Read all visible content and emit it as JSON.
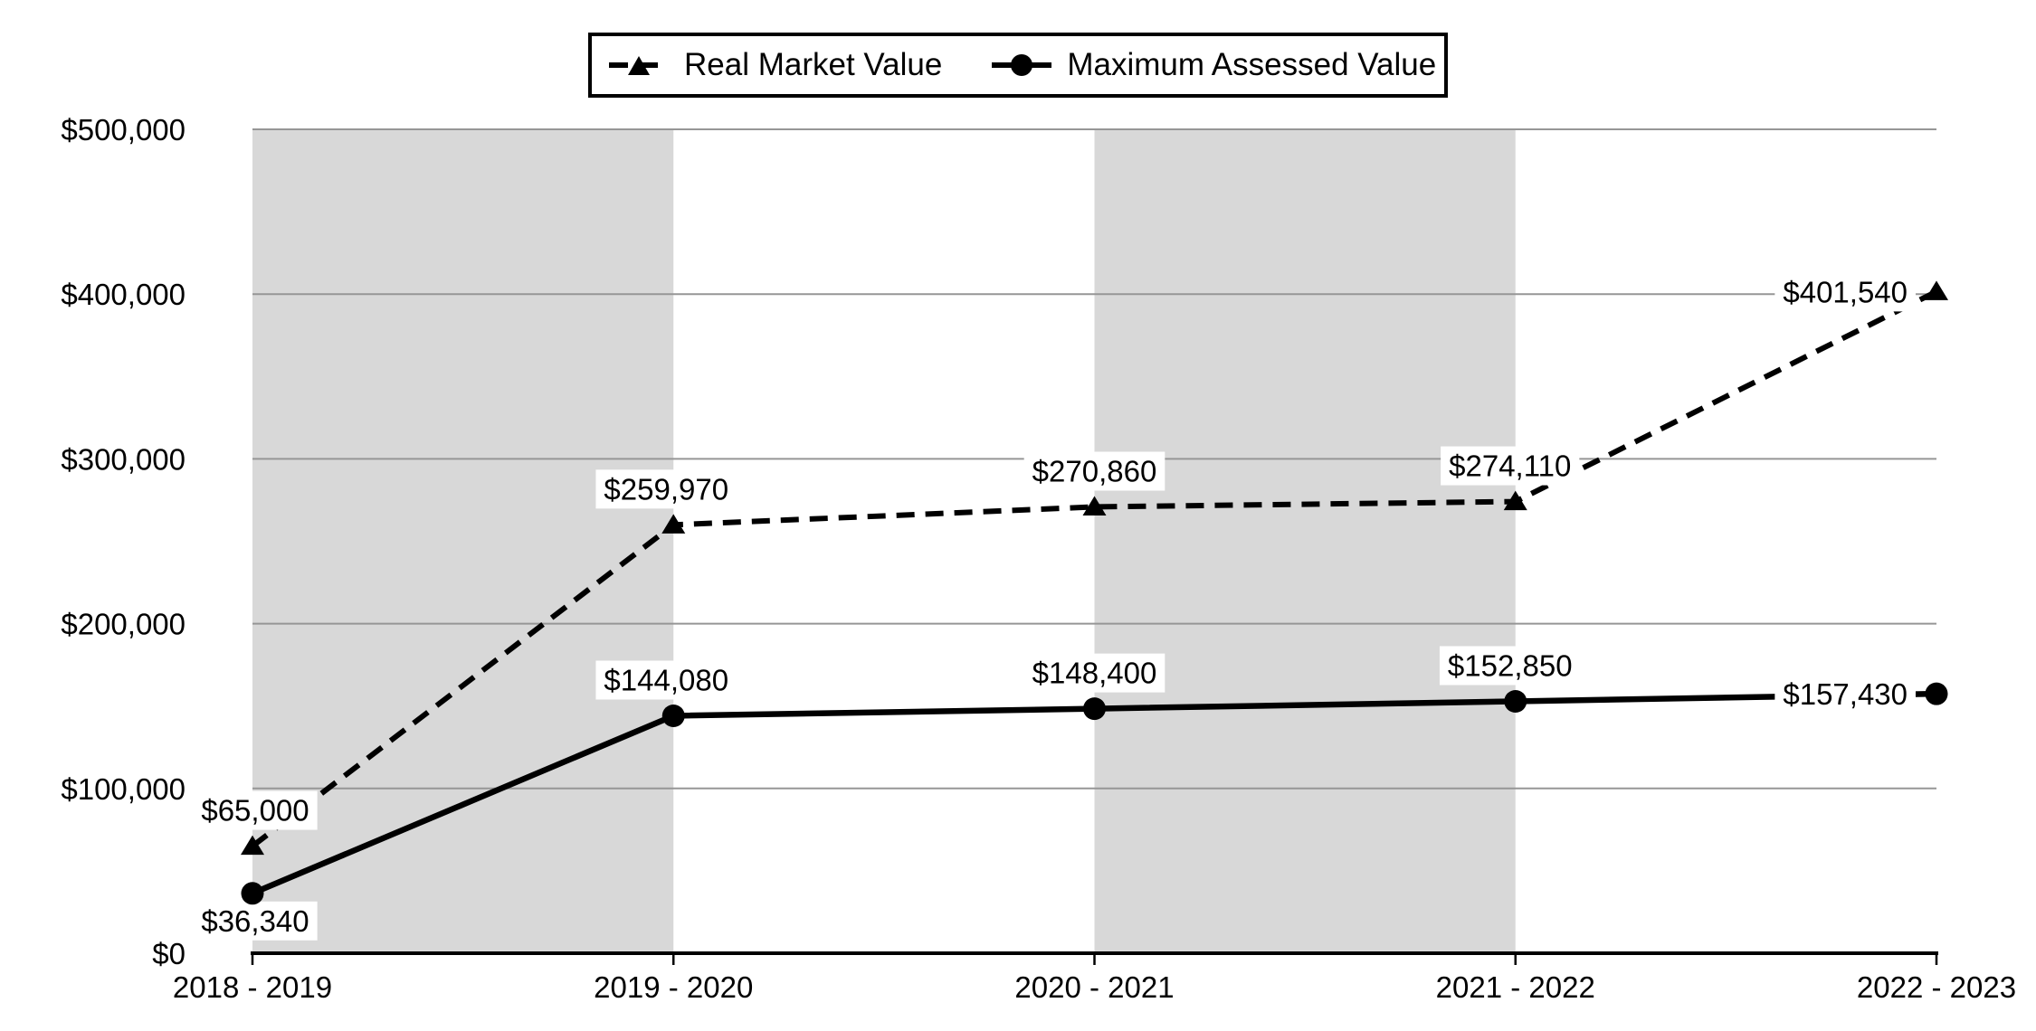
{
  "chart_data": {
    "type": "line",
    "title": "",
    "xlabel": "",
    "ylabel": "",
    "categories": [
      "2018 - 2019",
      "2019 - 2020",
      "2020 - 2021",
      "2021 - 2022",
      "2022 - 2023"
    ],
    "series": [
      {
        "name": "Real Market Value",
        "values": [
          65000,
          259970,
          270860,
          274110,
          401540
        ],
        "labels": [
          "$65,000",
          "$259,970",
          "$270,860",
          "$274,110",
          "$401,540"
        ],
        "line_style": "dashed",
        "marker": "triangle"
      },
      {
        "name": "Maximum Assessed Value",
        "values": [
          36340,
          144080,
          148400,
          152850,
          157430
        ],
        "labels": [
          "$36,340",
          "$144,080",
          "$148,400",
          "$152,850",
          "$157,430"
        ],
        "line_style": "solid",
        "marker": "circle"
      }
    ],
    "y_ticks": [
      "$0",
      "$100,000",
      "$200,000",
      "$300,000",
      "$400,000",
      "$500,000"
    ],
    "ylim": [
      0,
      500000
    ],
    "y_tick_step": 100000,
    "grid": true,
    "legend_position": "top-center",
    "shaded_band_ranges": [
      [
        0,
        1
      ],
      [
        2,
        3
      ]
    ],
    "colors": {
      "line": "#000000",
      "band": "#d8d8d8",
      "gridline": "#969696",
      "axis": "#000000",
      "label_bg": "#ffffff",
      "background": "#ffffff",
      "text": "#000000"
    }
  }
}
